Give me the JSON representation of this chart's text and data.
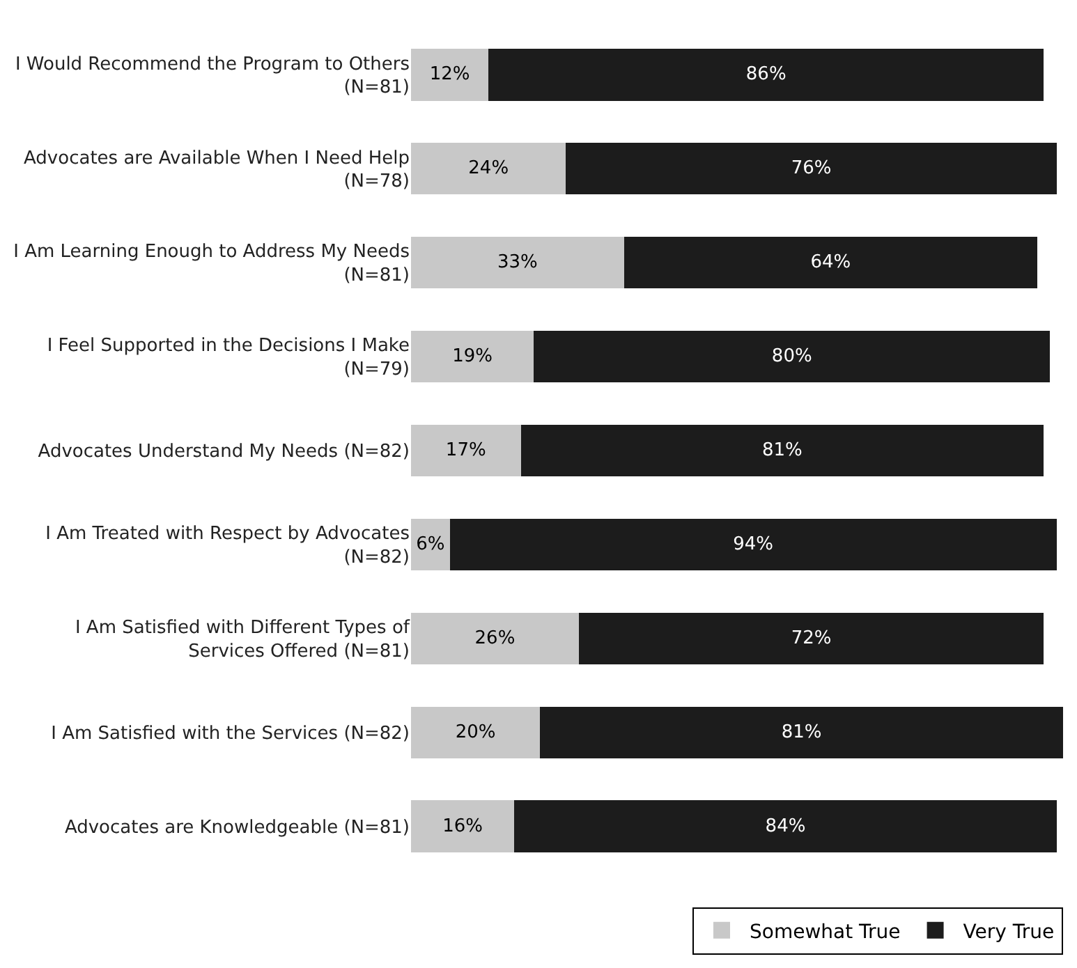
{
  "chart_data": {
    "type": "bar",
    "orientation": "horizontal",
    "stacked": true,
    "legend": "bottom right",
    "categories": [
      "I Would Recommend the Program to Others (N=81)",
      "Advocates are Available When I Need Help (N=78)",
      "I Am Learning Enough to Address My Needs (N=81)",
      "I Feel Supported in the Decisions I Make (N=79)",
      "Advocates Understand My Needs (N=82)",
      "I Am Treated with Respect by Advocates (N=82)",
      "I Am Satisfied with Different Types of Services Offered (N=81)",
      "I Am Satisfied with the Services (N=82)",
      "Advocates are Knowledgeable (N=81)"
    ],
    "series": [
      {
        "name": "Somewhat True",
        "color": "#c8c8c8",
        "values": [
          12,
          24,
          33,
          19,
          17,
          6,
          26,
          20,
          16
        ],
        "value_labels": [
          "12%",
          "24%",
          "33%",
          "19%",
          "17%",
          "6%",
          "26%",
          "20%",
          "16%"
        ]
      },
      {
        "name": "Very True",
        "color": "#1c1c1c",
        "values": [
          86,
          76,
          64,
          80,
          81,
          94,
          72,
          81,
          84
        ],
        "value_labels": [
          "86%",
          "76%",
          "64%",
          "80%",
          "81%",
          "94%",
          "72%",
          "81%",
          "84%"
        ]
      }
    ]
  }
}
